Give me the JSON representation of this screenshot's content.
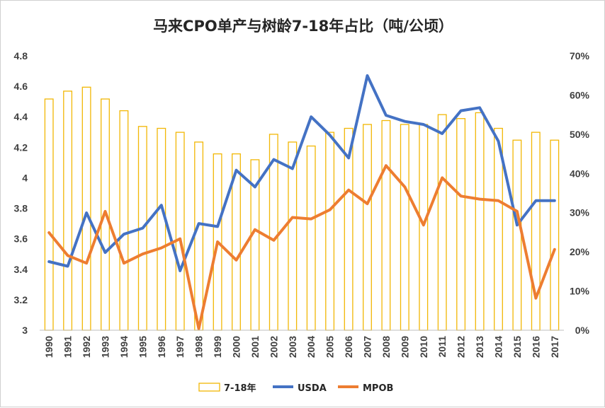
{
  "chart_data": {
    "type": "bar+line",
    "title": "马来CPO单产与树龄7-18年占比（吨/公顷）",
    "categories": [
      "1990",
      "1991",
      "1992",
      "1993",
      "1994",
      "1995",
      "1996",
      "1997",
      "1998",
      "1999",
      "2000",
      "2001",
      "2002",
      "2003",
      "2004",
      "2005",
      "2006",
      "2007",
      "2008",
      "2009",
      "2010",
      "2011",
      "2012",
      "2013",
      "2014",
      "2015",
      "2016",
      "2017"
    ],
    "left_axis": {
      "ylim": [
        3,
        4.8
      ],
      "ticks": [
        "3",
        "3.2",
        "3.4",
        "3.6",
        "3.8",
        "4",
        "4.2",
        "4.4",
        "4.6",
        "4.8"
      ]
    },
    "right_axis": {
      "ylim": [
        0,
        70
      ],
      "ticks": [
        "0%",
        "10%",
        "20%",
        "30%",
        "40%",
        "50%",
        "60%",
        "70%"
      ]
    },
    "series": [
      {
        "name": "7-18年",
        "kind": "bar",
        "axis": "right",
        "color": "#F2B705",
        "values": [
          59,
          61,
          62,
          59,
          56,
          52,
          51.5,
          50.5,
          48,
          45,
          45,
          43.5,
          50,
          48,
          47,
          50.5,
          51.5,
          52.5,
          53.5,
          52.5,
          52.5,
          55,
          54,
          55.5,
          51.5,
          48.5,
          50.5,
          48.5
        ]
      },
      {
        "name": "USDA",
        "kind": "line",
        "axis": "left",
        "color": "#4472C4",
        "values": [
          3.45,
          3.42,
          3.77,
          3.51,
          3.63,
          3.67,
          3.82,
          3.39,
          3.7,
          3.68,
          4.05,
          3.94,
          4.12,
          4.06,
          4.4,
          4.28,
          4.13,
          4.67,
          4.41,
          4.37,
          4.35,
          4.29,
          4.44,
          4.46,
          4.24,
          3.69,
          3.85,
          3.85
        ]
      },
      {
        "name": "MPOB",
        "kind": "line",
        "axis": "left",
        "color": "#ED7D31",
        "values": [
          3.64,
          3.49,
          3.44,
          3.78,
          3.44,
          3.5,
          3.54,
          3.6,
          3.01,
          3.58,
          3.46,
          3.66,
          3.59,
          3.74,
          3.73,
          3.79,
          3.92,
          3.83,
          4.08,
          3.94,
          3.69,
          4.0,
          3.88,
          3.86,
          3.85,
          3.78,
          3.21,
          3.53
        ]
      }
    ],
    "legend": {
      "position": "bottom"
    },
    "grid": false
  }
}
